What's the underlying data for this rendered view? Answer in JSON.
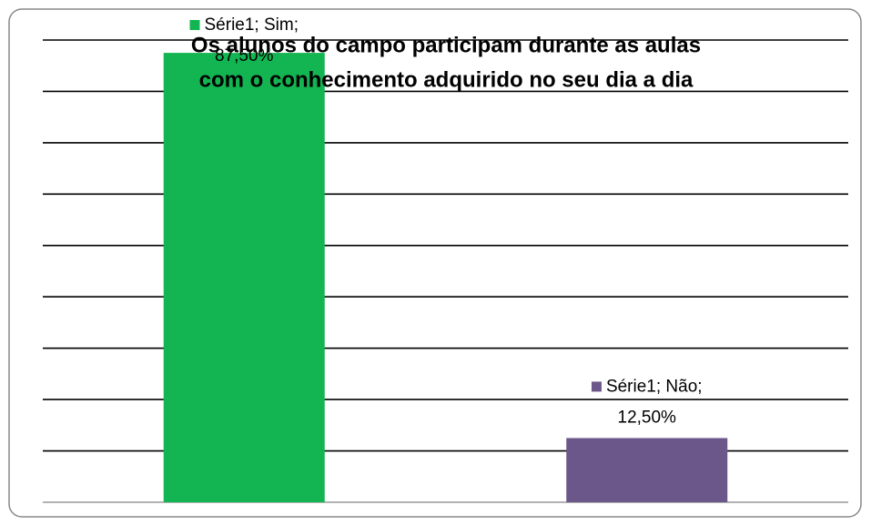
{
  "chart_data": {
    "type": "bar",
    "title": [
      "Os alunos do campo participam durante as aulas",
      "com o conhecimento adquirido no seu dia a dia"
    ],
    "series": [
      {
        "name": "Série1",
        "colors": [
          "#12b551",
          "#6b578a"
        ],
        "values": [
          87.5,
          12.5
        ],
        "value_labels": [
          "Série1; Sim; 87,50%",
          "Série1; Não; 12,50%"
        ]
      }
    ],
    "ylim": [
      0,
      90
    ],
    "yticks": [
      0,
      10,
      20,
      30,
      40,
      50,
      60,
      70,
      80,
      90
    ],
    "grid": true
  }
}
